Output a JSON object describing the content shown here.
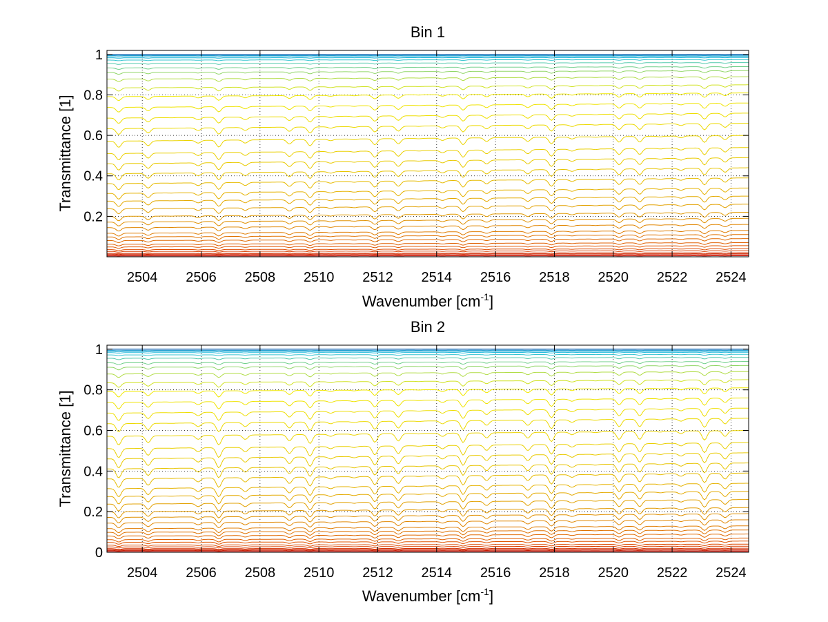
{
  "chart_data": [
    {
      "type": "line",
      "title": "Bin 1",
      "xlabel_main": "Wavenumber [cm",
      "xlabel_sup": "-1",
      "xlabel_end": "]",
      "ylabel": "Transmittance [1]",
      "xlim": [
        2502.8,
        2524.6
      ],
      "ylim": [
        0,
        1.02
      ],
      "xticks": [
        "2504",
        "2506",
        "2508",
        "2510",
        "2512",
        "2514",
        "2516",
        "2518",
        "2520",
        "2522",
        "2524"
      ],
      "yticks": [
        "0.2",
        "0.4",
        "0.6",
        "0.8",
        "1"
      ],
      "grid": true,
      "series_count": 40,
      "series_right_end_levels": [
        0.0,
        0.005,
        0.01,
        0.015,
        0.02,
        0.03,
        0.04,
        0.055,
        0.07,
        0.09,
        0.11,
        0.13,
        0.16,
        0.19,
        0.22,
        0.26,
        0.3,
        0.34,
        0.39,
        0.44,
        0.49,
        0.54,
        0.6,
        0.66,
        0.71,
        0.76,
        0.81,
        0.85,
        0.89,
        0.92,
        0.94,
        0.96,
        0.975,
        0.985,
        0.99,
        0.995,
        1.0,
        1.0,
        1.0,
        1.0
      ],
      "dip_depth_scale": 1.0,
      "colormap": [
        "#c00000",
        "#e05000",
        "#e09000",
        "#e8c800",
        "#f0e800",
        "#20c0e0",
        "#1060b0"
      ]
    },
    {
      "type": "line",
      "title": "Bin 2",
      "xlabel_main": "Wavenumber [cm",
      "xlabel_sup": "-1",
      "xlabel_end": "]",
      "ylabel": "Transmittance [1]",
      "xlim": [
        2502.8,
        2524.6
      ],
      "ylim": [
        0,
        1.02
      ],
      "xticks": [
        "2504",
        "2506",
        "2508",
        "2510",
        "2512",
        "2514",
        "2516",
        "2518",
        "2520",
        "2522",
        "2524"
      ],
      "yticks": [
        "0",
        "0.2",
        "0.4",
        "0.6",
        "0.8",
        "1"
      ],
      "grid": true,
      "series_count": 40,
      "series_right_end_levels": [
        0.0,
        0.005,
        0.01,
        0.015,
        0.02,
        0.03,
        0.04,
        0.055,
        0.07,
        0.09,
        0.11,
        0.13,
        0.16,
        0.19,
        0.22,
        0.26,
        0.3,
        0.34,
        0.39,
        0.44,
        0.49,
        0.54,
        0.6,
        0.66,
        0.71,
        0.76,
        0.81,
        0.85,
        0.89,
        0.92,
        0.94,
        0.96,
        0.975,
        0.985,
        0.99,
        0.995,
        1.0,
        1.0,
        1.0,
        1.0
      ],
      "dip_depth_scale": 1.4,
      "colormap": [
        "#c00000",
        "#e05000",
        "#e09000",
        "#e8c800",
        "#f0e800",
        "#20c0e0",
        "#1060b0"
      ]
    }
  ]
}
